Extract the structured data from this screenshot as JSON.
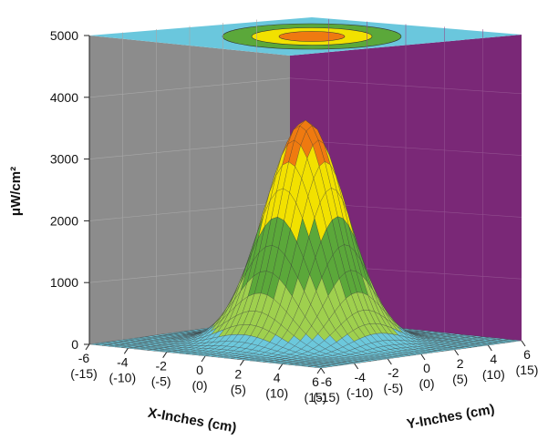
{
  "chart_data": {
    "type": "surface3d",
    "title": "",
    "zlabel": "μW/cm²",
    "xlabel": "X-Inches (cm)",
    "ylabel": "Y-Inches (cm)",
    "zlim": [
      0,
      5000
    ],
    "z_ticks": [
      "0",
      "1000",
      "2000",
      "3000",
      "4000",
      "5000"
    ],
    "x_ticks": [
      {
        "in": "-6",
        "cm": "(-15)"
      },
      {
        "in": "-4",
        "cm": "(-10)"
      },
      {
        "in": "-2",
        "cm": "(-5)"
      },
      {
        "in": "0",
        "cm": "(0)"
      },
      {
        "in": "2",
        "cm": "(5)"
      },
      {
        "in": "4",
        "cm": "(10)"
      },
      {
        "in": "6",
        "cm": "(15)"
      }
    ],
    "y_ticks": [
      {
        "in": "-6",
        "cm": "(-15)"
      },
      {
        "in": "-4",
        "cm": "(-10)"
      },
      {
        "in": "-2",
        "cm": "(-5)"
      },
      {
        "in": "0",
        "cm": "(0)"
      },
      {
        "in": "2",
        "cm": "(5)"
      },
      {
        "in": "4",
        "cm": "(10)"
      },
      {
        "in": "6",
        "cm": "(15)"
      }
    ],
    "xlim": [
      -6,
      6
    ],
    "ylim": [
      -6,
      6
    ],
    "peak_value": 3600,
    "distribution": "gaussian",
    "sigma_inches": 1.6,
    "color_bands": [
      {
        "from": 0,
        "to": 250,
        "color": "#6cc8dc"
      },
      {
        "from": 250,
        "to": 1000,
        "color": "#9fd04e"
      },
      {
        "from": 1000,
        "to": 2000,
        "color": "#5ba83a"
      },
      {
        "from": 2000,
        "to": 3000,
        "color": "#f2e100"
      },
      {
        "from": 3000,
        "to": 5000,
        "color": "#ef7a10"
      }
    ],
    "walls": {
      "left": "#8c8c8c",
      "right": "#7a2877",
      "top": "#6ac7dd"
    },
    "grid": true
  }
}
